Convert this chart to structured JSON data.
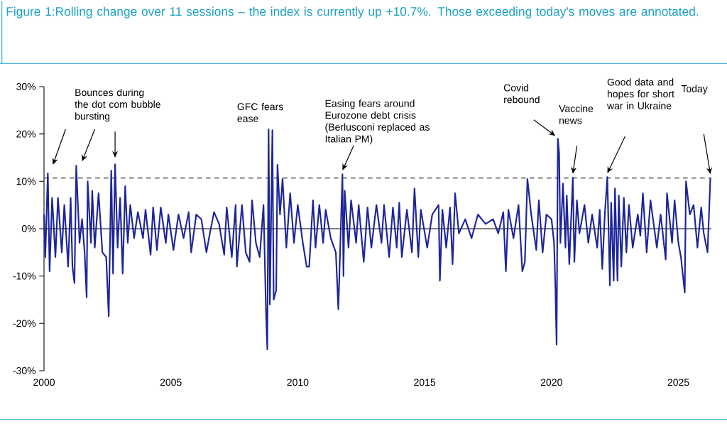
{
  "chart_data": {
    "type": "line",
    "title": "Figure 1:Rolling change over 11 sessions – the index is currently up +10.7%. Those exceeding today's moves are annotated.",
    "x": [
      2000.0,
      2000.05,
      2000.15,
      2000.22,
      2000.32,
      2000.45,
      2000.55,
      2000.7,
      2000.8,
      2000.95,
      2001.05,
      2001.12,
      2001.2,
      2001.27,
      2001.4,
      2001.5,
      2001.6,
      2001.68,
      2001.72,
      2001.85,
      2001.9,
      2002.0,
      2002.15,
      2002.3,
      2002.45,
      2002.55,
      2002.65,
      2002.72,
      2002.8,
      2002.9,
      2003.0,
      2003.1,
      2003.2,
      2003.3,
      2003.4,
      2003.55,
      2003.7,
      2003.9,
      2004.0,
      2004.2,
      2004.3,
      2004.45,
      2004.6,
      2004.8,
      2004.9,
      2005.1,
      2005.3,
      2005.5,
      2005.7,
      2005.8,
      2006.0,
      2006.2,
      2006.4,
      2006.5,
      2006.7,
      2006.9,
      2007.1,
      2007.2,
      2007.4,
      2007.55,
      2007.6,
      2007.8,
      2007.95,
      2008.1,
      2008.2,
      2008.35,
      2008.5,
      2008.65,
      2008.75,
      2008.8,
      2008.85,
      2008.9,
      2009.0,
      2009.05,
      2009.15,
      2009.2,
      2009.3,
      2009.4,
      2009.55,
      2009.7,
      2009.85,
      2010.0,
      2010.2,
      2010.35,
      2010.45,
      2010.6,
      2010.7,
      2010.85,
      2011.0,
      2011.1,
      2011.3,
      2011.5,
      2011.6,
      2011.76,
      2011.8,
      2011.85,
      2012.0,
      2012.1,
      2012.3,
      2012.4,
      2012.6,
      2012.75,
      2012.9,
      2013.1,
      2013.3,
      2013.4,
      2013.6,
      2013.75,
      2013.9,
      2014.0,
      2014.1,
      2014.3,
      2014.5,
      2014.6,
      2014.75,
      2014.85,
      2015.1,
      2015.3,
      2015.55,
      2015.6,
      2015.7,
      2015.85,
      2016.0,
      2016.1,
      2016.2,
      2016.35,
      2016.6,
      2016.85,
      2017.1,
      2017.4,
      2017.7,
      2017.9,
      2018.1,
      2018.2,
      2018.3,
      2018.5,
      2018.7,
      2018.85,
      2018.95,
      2019.05,
      2019.2,
      2019.4,
      2019.5,
      2019.65,
      2019.8,
      2020.0,
      2020.1,
      2020.15,
      2020.2,
      2020.25,
      2020.3,
      2020.35,
      2020.45,
      2020.55,
      2020.6,
      2020.7,
      2020.84,
      2020.9,
      2021.0,
      2021.1,
      2021.3,
      2021.45,
      2021.6,
      2021.8,
      2021.9,
      2022.0,
      2022.1,
      2022.2,
      2022.3,
      2022.35,
      2022.45,
      2022.5,
      2022.6,
      2022.65,
      2022.75,
      2022.85,
      2022.95,
      2023.05,
      2023.2,
      2023.4,
      2023.5,
      2023.6,
      2023.75,
      2023.9,
      2024.0,
      2024.15,
      2024.3,
      2024.5,
      2024.55,
      2024.75,
      2024.85,
      2025.0,
      2025.1,
      2025.25,
      2025.3,
      2025.45,
      2025.6,
      2025.75,
      2025.9,
      2026.0,
      2026.15,
      2026.26
    ],
    "values": [
      3,
      -6,
      11.7,
      -9,
      6.5,
      -6,
      6.5,
      -5,
      5,
      -8,
      6.5,
      -8,
      -11.5,
      13.3,
      -3,
      2,
      -5,
      -14.5,
      10,
      -3,
      8,
      -4,
      7.5,
      -5,
      -6,
      -18.5,
      12.3,
      -9.5,
      13.6,
      -4,
      6.5,
      -9.5,
      9,
      -3,
      5,
      -2,
      3.5,
      -2,
      4,
      -5.5,
      4.5,
      -4.5,
      4.5,
      -3,
      3,
      -4.5,
      3,
      -2,
      3.5,
      -5,
      3,
      2,
      -5,
      -2,
      3.5,
      1,
      -5.5,
      4.5,
      -6,
      5,
      -8,
      5,
      -5,
      -7,
      6,
      -3,
      -6,
      5,
      -18,
      -25.5,
      21,
      -16,
      20.8,
      -15,
      -13,
      13.5,
      3,
      10.5,
      -4,
      7.5,
      -3,
      5,
      -3,
      -8,
      -8,
      6,
      -4,
      5,
      -3,
      4,
      -2,
      -5,
      -17,
      11.5,
      -10,
      8,
      -4,
      6,
      -3,
      5,
      -7,
      4.5,
      -4,
      5,
      -3,
      5,
      -6,
      4.5,
      -4,
      5.5,
      -6,
      4,
      -5,
      8.5,
      -6,
      4,
      -4,
      3,
      5,
      -11,
      4,
      -4,
      4.5,
      -7.5,
      7.5,
      -1,
      2,
      -2,
      3,
      1,
      2,
      -1,
      3.5,
      -9,
      4,
      -2,
      5,
      -9,
      -7,
      10.5,
      3,
      -4.5,
      6,
      -5,
      3,
      2,
      -3,
      -12,
      -24.5,
      19,
      16,
      -3,
      9.5,
      -4,
      7,
      -7.5,
      10.8,
      -7,
      6,
      -1,
      5,
      -3,
      3,
      -4,
      4,
      -8.5,
      3,
      10.9,
      -12,
      5.5,
      -11,
      8.5,
      -11,
      7,
      -8,
      6.5,
      -5,
      5,
      -4,
      3,
      -1.5,
      7.5,
      -5,
      6,
      2,
      -4,
      3,
      -6.5,
      7.5,
      -3,
      6,
      -3,
      -6,
      -13.5,
      10,
      3,
      5,
      -4,
      4.5,
      -1,
      -5,
      10.7
    ],
    "color": "#1c2599",
    "xlim": [
      2000,
      2026.3
    ],
    "xticks": [
      2000,
      2005,
      2010,
      2015,
      2020,
      2025
    ],
    "ylim": [
      -30,
      30
    ],
    "yticks": [
      {
        "value": -30,
        "label": "-30%"
      },
      {
        "value": -20,
        "label": "-20%"
      },
      {
        "value": -10,
        "label": "-10%"
      },
      {
        "value": 0,
        "label": "0%"
      },
      {
        "value": 10,
        "label": "10%"
      },
      {
        "value": 20,
        "label": "20%"
      },
      {
        "value": 30,
        "label": "30%"
      }
    ],
    "ref_lines": [
      {
        "axis": "y",
        "value": 10.7,
        "color": "#000000",
        "line_style": "dashed"
      },
      {
        "axis": "y",
        "value": 0,
        "color": "#000000",
        "line_style": "solid"
      }
    ],
    "annotations": [
      "Bounces during the dot com bubble bursting",
      "GFC fears ease",
      "Easing fears around Eurozone debt crisis (Berlusconi replaced as Italian PM)",
      "Covid rebound",
      "Vaccine news",
      "Good data and hopes for short war in Ukraine",
      "Today"
    ]
  }
}
